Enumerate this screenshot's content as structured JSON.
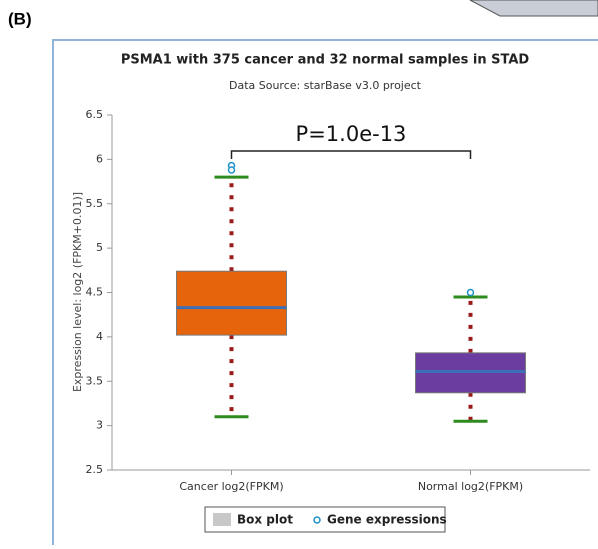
{
  "panel_label": "(B)",
  "chart_data": {
    "type": "box",
    "title": "PSMA1 with 375 cancer and 32 normal samples in STAD",
    "subtitle": "Data Source: starBase v3.0 project",
    "ylabel": "Expression level: log2 (FPKM+0.01)]",
    "annotation": "P=1.0e-13",
    "categories": [
      "Cancer log2(FPKM)",
      "Normal log2(FPKM)"
    ],
    "boxes": [
      {
        "min": 3.1,
        "q1": 4.02,
        "median": 4.33,
        "q3": 4.74,
        "max": 5.8,
        "outliers": [
          5.93,
          5.88
        ],
        "color": "#e5640c"
      },
      {
        "min": 3.05,
        "q1": 3.37,
        "median": 3.61,
        "q3": 3.82,
        "max": 4.45,
        "outliers": [
          4.5
        ],
        "color": "#6b3da0"
      }
    ],
    "ylim": [
      2.5,
      6.5
    ],
    "yticks": [
      2.5,
      3,
      3.5,
      4,
      4.5,
      5,
      5.5,
      6,
      6.5
    ],
    "legend": [
      "Box plot",
      "Gene expressions"
    ]
  }
}
